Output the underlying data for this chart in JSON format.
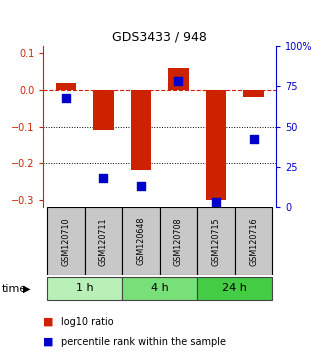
{
  "title": "GDS3433 / 948",
  "samples": [
    "GSM120710",
    "GSM120711",
    "GSM120648",
    "GSM120708",
    "GSM120715",
    "GSM120716"
  ],
  "log10_ratio": [
    0.02,
    -0.11,
    -0.22,
    0.06,
    -0.3,
    -0.018
  ],
  "percentile_rank": [
    68,
    18,
    13,
    78,
    3,
    42
  ],
  "groups": [
    {
      "label": "1 h",
      "indices": [
        0,
        1
      ],
      "color": "#b8f0b8"
    },
    {
      "label": "4 h",
      "indices": [
        2,
        3
      ],
      "color": "#78e078"
    },
    {
      "label": "24 h",
      "indices": [
        4,
        5
      ],
      "color": "#44cc44"
    }
  ],
  "bar_color": "#cc2200",
  "dot_color": "#0000cc",
  "ylim_left": [
    -0.32,
    0.12
  ],
  "ylim_right": [
    0,
    100
  ],
  "yticks_left": [
    -0.3,
    -0.2,
    -0.1,
    0.0,
    0.1
  ],
  "yticks_right": [
    0,
    25,
    50,
    75,
    100
  ],
  "ytick_labels_right": [
    "0",
    "25",
    "50",
    "75",
    "100%"
  ],
  "hline_y": 0.0,
  "dotted_lines": [
    -0.1,
    -0.2
  ],
  "bar_width": 0.55,
  "dot_size": 28,
  "legend_labels": [
    "log10 ratio",
    "percentile rank within the sample"
  ],
  "time_label": "time",
  "sample_box_color": "#c8c8c8"
}
